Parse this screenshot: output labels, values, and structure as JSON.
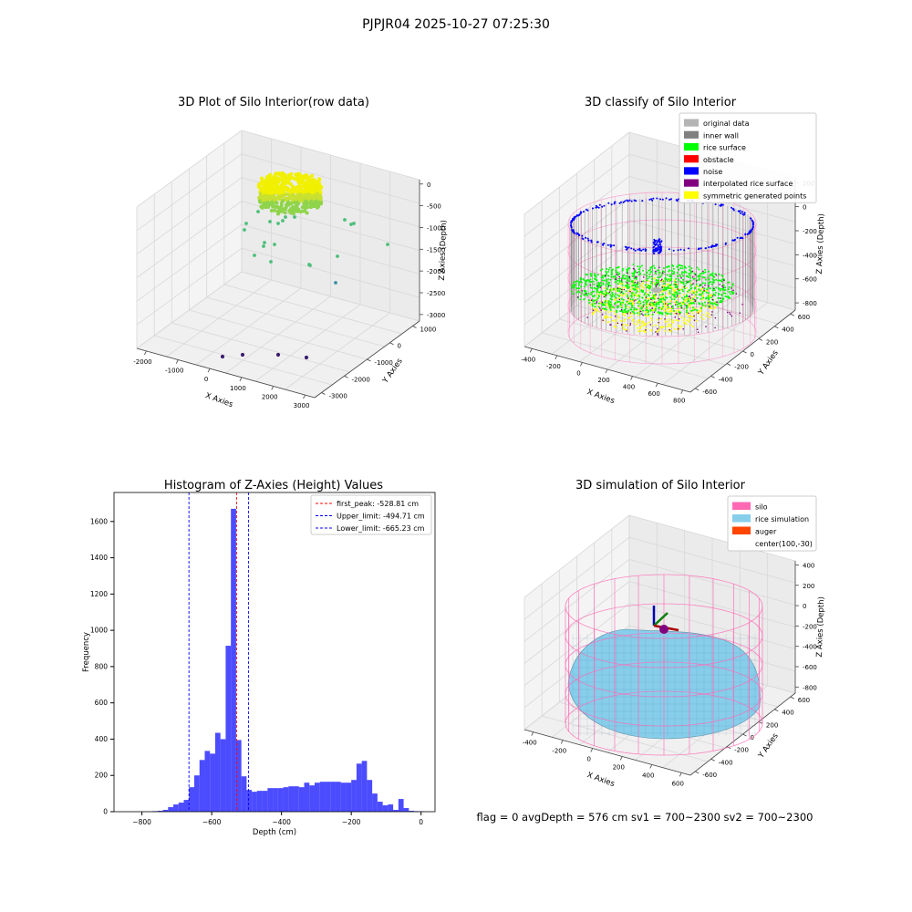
{
  "page": {
    "suptitle": "PJPJR04 2025-10-27 07:25:30",
    "footer": "flag = 0     avgDepth = 576 cm  sv1 = 700~2300  sv2 = 700~2300"
  },
  "colors": {
    "original": "#b4b4b4",
    "inner_wall": "#808080",
    "rice_surface": "#00ff00",
    "obstacle": "#ff0000",
    "noise": "#0000ff",
    "interpolated": "#800080",
    "symmetric": "#ffff00",
    "silo": "#ff69b4",
    "rice_sim": "#87ceeb",
    "auger": "#ff4500",
    "hist_bar": "#0000ff"
  },
  "panel1": {
    "title": "3D Plot of Silo Interior(row data)",
    "xlabel": "X Axies",
    "ylabel": "Y Axies",
    "zlabel": "Z Axies (Depth)",
    "xticks": [
      "-2000",
      "-1000",
      "0",
      "1000",
      "2000",
      "3000"
    ],
    "yticks": [
      "1000",
      "0",
      "-1000",
      "-2000",
      "-3000"
    ],
    "zticks": [
      "0",
      "-500",
      "-1000",
      "-1500",
      "-2000",
      "-2500",
      "-3000"
    ]
  },
  "panel2": {
    "title": "3D classify of Silo Interior",
    "xlabel": "X Axies",
    "ylabel": "Y Axies",
    "zlabel": "Z Axies (Depth)",
    "xticks": [
      "-400",
      "-200",
      "0",
      "200",
      "400",
      "600",
      "800"
    ],
    "yticks": [
      "600",
      "400",
      "200",
      "0",
      "-200",
      "-400",
      "-600"
    ],
    "zticks": [
      "200",
      "0",
      "-200",
      "-400",
      "-600",
      "-800"
    ],
    "legend": [
      {
        "label": "original data",
        "color": "#b4b4b4"
      },
      {
        "label": "inner wall",
        "color": "#808080"
      },
      {
        "label": "rice surface",
        "color": "#00ff00"
      },
      {
        "label": "obstacle",
        "color": "#ff0000"
      },
      {
        "label": "noise",
        "color": "#0000ff"
      },
      {
        "label": "interpolated rice surface",
        "color": "#800080"
      },
      {
        "label": "symmetric generated points",
        "color": "#ffff00"
      }
    ]
  },
  "panel3": {
    "title": "Histogram of Z-Axies (Height) Values",
    "xlabel": "Depth (cm)",
    "ylabel": "Frequency",
    "legend": [
      {
        "label": "first_peak: -528.81 cm",
        "color": "#ff0000"
      },
      {
        "label": "Upper_limit: -494.71 cm",
        "color": "#0000ff"
      },
      {
        "label": "Lower_limit: -665.23 cm",
        "color": "#0000ff"
      }
    ]
  },
  "panel4": {
    "title": "3D simulation of Silo Interior",
    "xlabel": "X Axies",
    "ylabel": "Y Axies",
    "zlabel": "Z Axies (Depth)",
    "xticks": [
      "-400",
      "-200",
      "0",
      "200",
      "400",
      "600"
    ],
    "yticks": [
      "600",
      "400",
      "200",
      "0",
      "-200",
      "-400",
      "-600"
    ],
    "zticks": [
      "400",
      "200",
      "0",
      "-200",
      "-400",
      "-600",
      "-800"
    ],
    "legend": [
      {
        "label": "silo",
        "color": "#ff69b4"
      },
      {
        "label": "rice simulation",
        "color": "#87ceeb"
      },
      {
        "label": "auger",
        "color": "#ff4500"
      },
      {
        "label": "center(100,-30)",
        "color": ""
      }
    ]
  },
  "chart_data": [
    {
      "type": "scatter",
      "title": "3D Plot of Silo Interior(row data)",
      "xlabel": "X Axies",
      "ylabel": "Y Axies",
      "zlabel": "Z Axies (Depth)",
      "xlim": [
        -2000,
        3000
      ],
      "ylim": [
        -3000,
        1000
      ],
      "zlim": [
        -3000,
        0
      ],
      "grid": true
    },
    {
      "type": "scatter",
      "title": "3D classify of Silo Interior",
      "xlabel": "X Axies",
      "ylabel": "Y Axies",
      "zlabel": "Z Axies (Depth)",
      "xlim": [
        -400,
        800
      ],
      "ylim": [
        -600,
        600
      ],
      "zlim": [
        -800,
        200
      ],
      "series": [
        {
          "name": "original data"
        },
        {
          "name": "inner wall"
        },
        {
          "name": "rice surface"
        },
        {
          "name": "obstacle"
        },
        {
          "name": "noise"
        },
        {
          "name": "interpolated rice surface"
        },
        {
          "name": "symmetric generated points"
        }
      ],
      "legend": "top-right",
      "grid": true
    },
    {
      "type": "bar",
      "title": "Histogram of Z-Axies (Height) Values",
      "xlabel": "Depth (cm)",
      "ylabel": "Frequency",
      "xlim": [
        -880,
        40
      ],
      "ylim": [
        0,
        1760
      ],
      "xticks": [
        -800,
        -600,
        -400,
        -200,
        0
      ],
      "yticks": [
        0,
        200,
        400,
        600,
        800,
        1000,
        1200,
        1400,
        1600
      ],
      "bin_left": [
        -770,
        -755,
        -740,
        -725,
        -710,
        -695,
        -680,
        -665,
        -650,
        -635,
        -620,
        -605,
        -590,
        -575,
        -560,
        -545,
        -530,
        -515,
        -500,
        -485,
        -470,
        -455,
        -440,
        -425,
        -410,
        -395,
        -380,
        -365,
        -350,
        -335,
        -320,
        -305,
        -290,
        -275,
        -260,
        -245,
        -230,
        -215,
        -200,
        -185,
        -170,
        -155,
        -140,
        -125,
        -110,
        -95,
        -80,
        -65,
        -50,
        -35,
        -20,
        -5
      ],
      "bin_width": 15,
      "values": [
        3,
        5,
        10,
        25,
        40,
        50,
        65,
        135,
        200,
        285,
        335,
        320,
        435,
        400,
        915,
        1670,
        395,
        195,
        120,
        110,
        115,
        115,
        130,
        130,
        130,
        135,
        140,
        140,
        135,
        160,
        145,
        160,
        165,
        165,
        165,
        165,
        160,
        160,
        175,
        265,
        280,
        175,
        100,
        55,
        35,
        40,
        10,
        70,
        20,
        5,
        3,
        2
      ],
      "vlines": [
        {
          "name": "first_peak: -528.81 cm",
          "x": -528.81,
          "color": "#ff0000"
        },
        {
          "name": "Upper_limit: -494.71 cm",
          "x": -494.71,
          "color": "#0000ff"
        },
        {
          "name": "Lower_limit: -665.23 cm",
          "x": -665.23,
          "color": "#0000ff"
        }
      ],
      "legend": "top-right"
    },
    {
      "type": "area",
      "title": "3D simulation of Silo Interior",
      "xlabel": "X Axies",
      "ylabel": "Y Axies",
      "zlabel": "Z Axies (Depth)",
      "xlim": [
        -400,
        600
      ],
      "ylim": [
        -600,
        600
      ],
      "zlim": [
        -800,
        400
      ],
      "series": [
        {
          "name": "silo"
        },
        {
          "name": "rice simulation"
        },
        {
          "name": "auger"
        },
        {
          "name": "center(100,-30)"
        }
      ],
      "legend": "top-right",
      "grid": true
    }
  ]
}
